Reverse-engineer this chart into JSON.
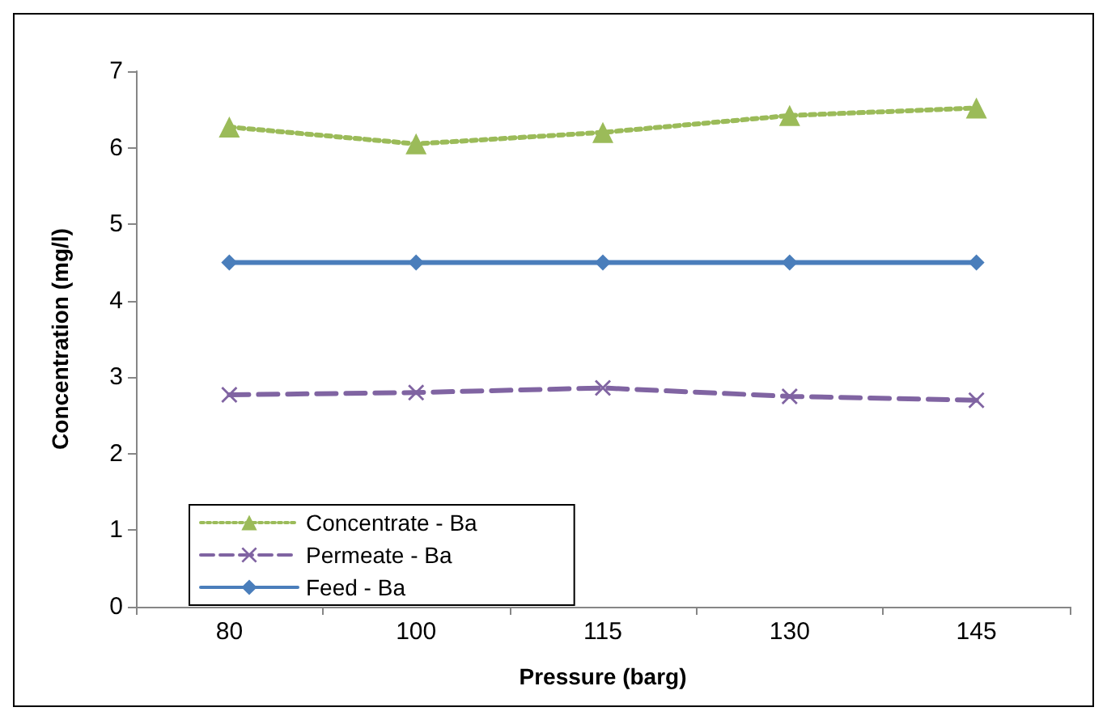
{
  "chart_data": {
    "type": "line",
    "xlabel": "Pressure (barg)",
    "ylabel": "Concentration (mg/l)",
    "categories": [
      "80",
      "100",
      "115",
      "130",
      "145"
    ],
    "series": [
      {
        "name": "Concentrate - Ba",
        "color": "#9bbb59",
        "marker": "triangle",
        "line_style": "dotted",
        "values": [
          6.27,
          6.05,
          6.2,
          6.42,
          6.52
        ]
      },
      {
        "name": "Permeate - Ba",
        "color": "#8064a2",
        "marker": "cross",
        "line_style": "dashed",
        "values": [
          2.77,
          2.8,
          2.86,
          2.75,
          2.7
        ]
      },
      {
        "name": "Feed - Ba",
        "color": "#4a7ebb",
        "marker": "diamond",
        "line_style": "solid",
        "values": [
          4.5,
          4.5,
          4.5,
          4.5,
          4.5
        ]
      }
    ],
    "ylim": [
      0,
      7
    ],
    "yticks": [
      0,
      1,
      2,
      3,
      4,
      5,
      6,
      7
    ],
    "grid": false,
    "legend": "bottom left"
  }
}
